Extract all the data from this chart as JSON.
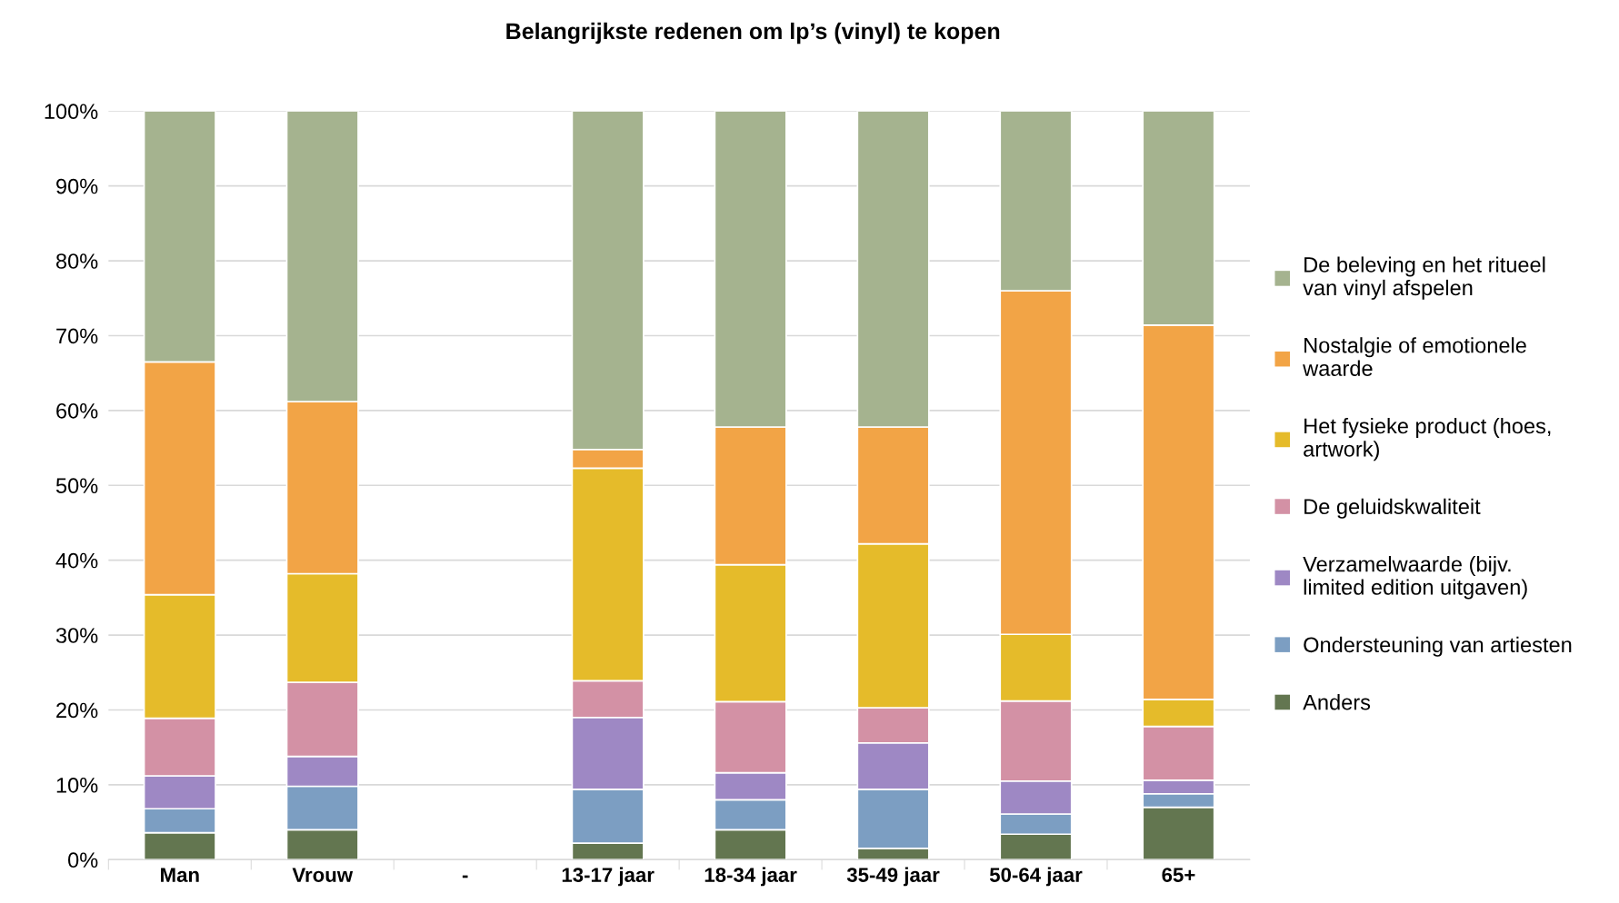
{
  "chart_data": {
    "type": "bar",
    "title": "Belangrijkste redenen om lp’s (vinyl) te kopen",
    "categories": [
      "Man",
      "Vrouw",
      "-",
      "13-17 jaar",
      "18-34 jaar",
      "35-49 jaar",
      "50-64 jaar",
      "65+"
    ],
    "stacked": true,
    "series": [
      {
        "name": "Anders",
        "color": "#637650",
        "values": [
          3.6,
          4.0,
          null,
          2.2,
          4.0,
          1.5,
          3.4,
          7.0
        ]
      },
      {
        "name": "Ondersteuning van artiesten",
        "color": "#7c9ec2",
        "values": [
          3.2,
          5.8,
          null,
          7.2,
          4.0,
          7.9,
          2.7,
          1.8
        ]
      },
      {
        "name": "Verzamelwaarde (bijv. limited edition uitgaven)",
        "color": "#9e88c4",
        "values": [
          4.4,
          4.0,
          null,
          9.6,
          3.6,
          6.2,
          4.4,
          1.8
        ]
      },
      {
        "name": "De geluidskwaliteit",
        "color": "#d391a5",
        "values": [
          7.7,
          9.9,
          null,
          4.9,
          9.5,
          4.7,
          10.7,
          7.2
        ]
      },
      {
        "name": "Het fysieke product (hoes, artwork)",
        "color": "#e5bb2a",
        "values": [
          16.5,
          14.5,
          null,
          28.4,
          18.3,
          21.9,
          8.9,
          3.6
        ]
      },
      {
        "name": "Nostalgie of emotionele waarde",
        "color": "#f2a446",
        "values": [
          31.1,
          23.0,
          null,
          2.5,
          18.4,
          15.6,
          45.9,
          50.0
        ]
      },
      {
        "name": "De beleving en het ritueel van vinyl afspelen",
        "color": "#a5b38f",
        "values": [
          33.5,
          38.8,
          null,
          45.2,
          42.2,
          42.2,
          24.0,
          28.6
        ]
      }
    ],
    "ylim": [
      0,
      100
    ],
    "yticks": [
      {
        "value": 0,
        "label": "0%"
      },
      {
        "value": 10,
        "label": "10%"
      },
      {
        "value": 20,
        "label": "20%"
      },
      {
        "value": 30,
        "label": "30%"
      },
      {
        "value": 40,
        "label": "40%"
      },
      {
        "value": 50,
        "label": "50%"
      },
      {
        "value": 60,
        "label": "60%"
      },
      {
        "value": 70,
        "label": "70%"
      },
      {
        "value": 80,
        "label": "80%"
      },
      {
        "value": 90,
        "label": "90%"
      },
      {
        "value": 100,
        "label": "100%"
      }
    ],
    "grid": "y",
    "legend": "right"
  }
}
